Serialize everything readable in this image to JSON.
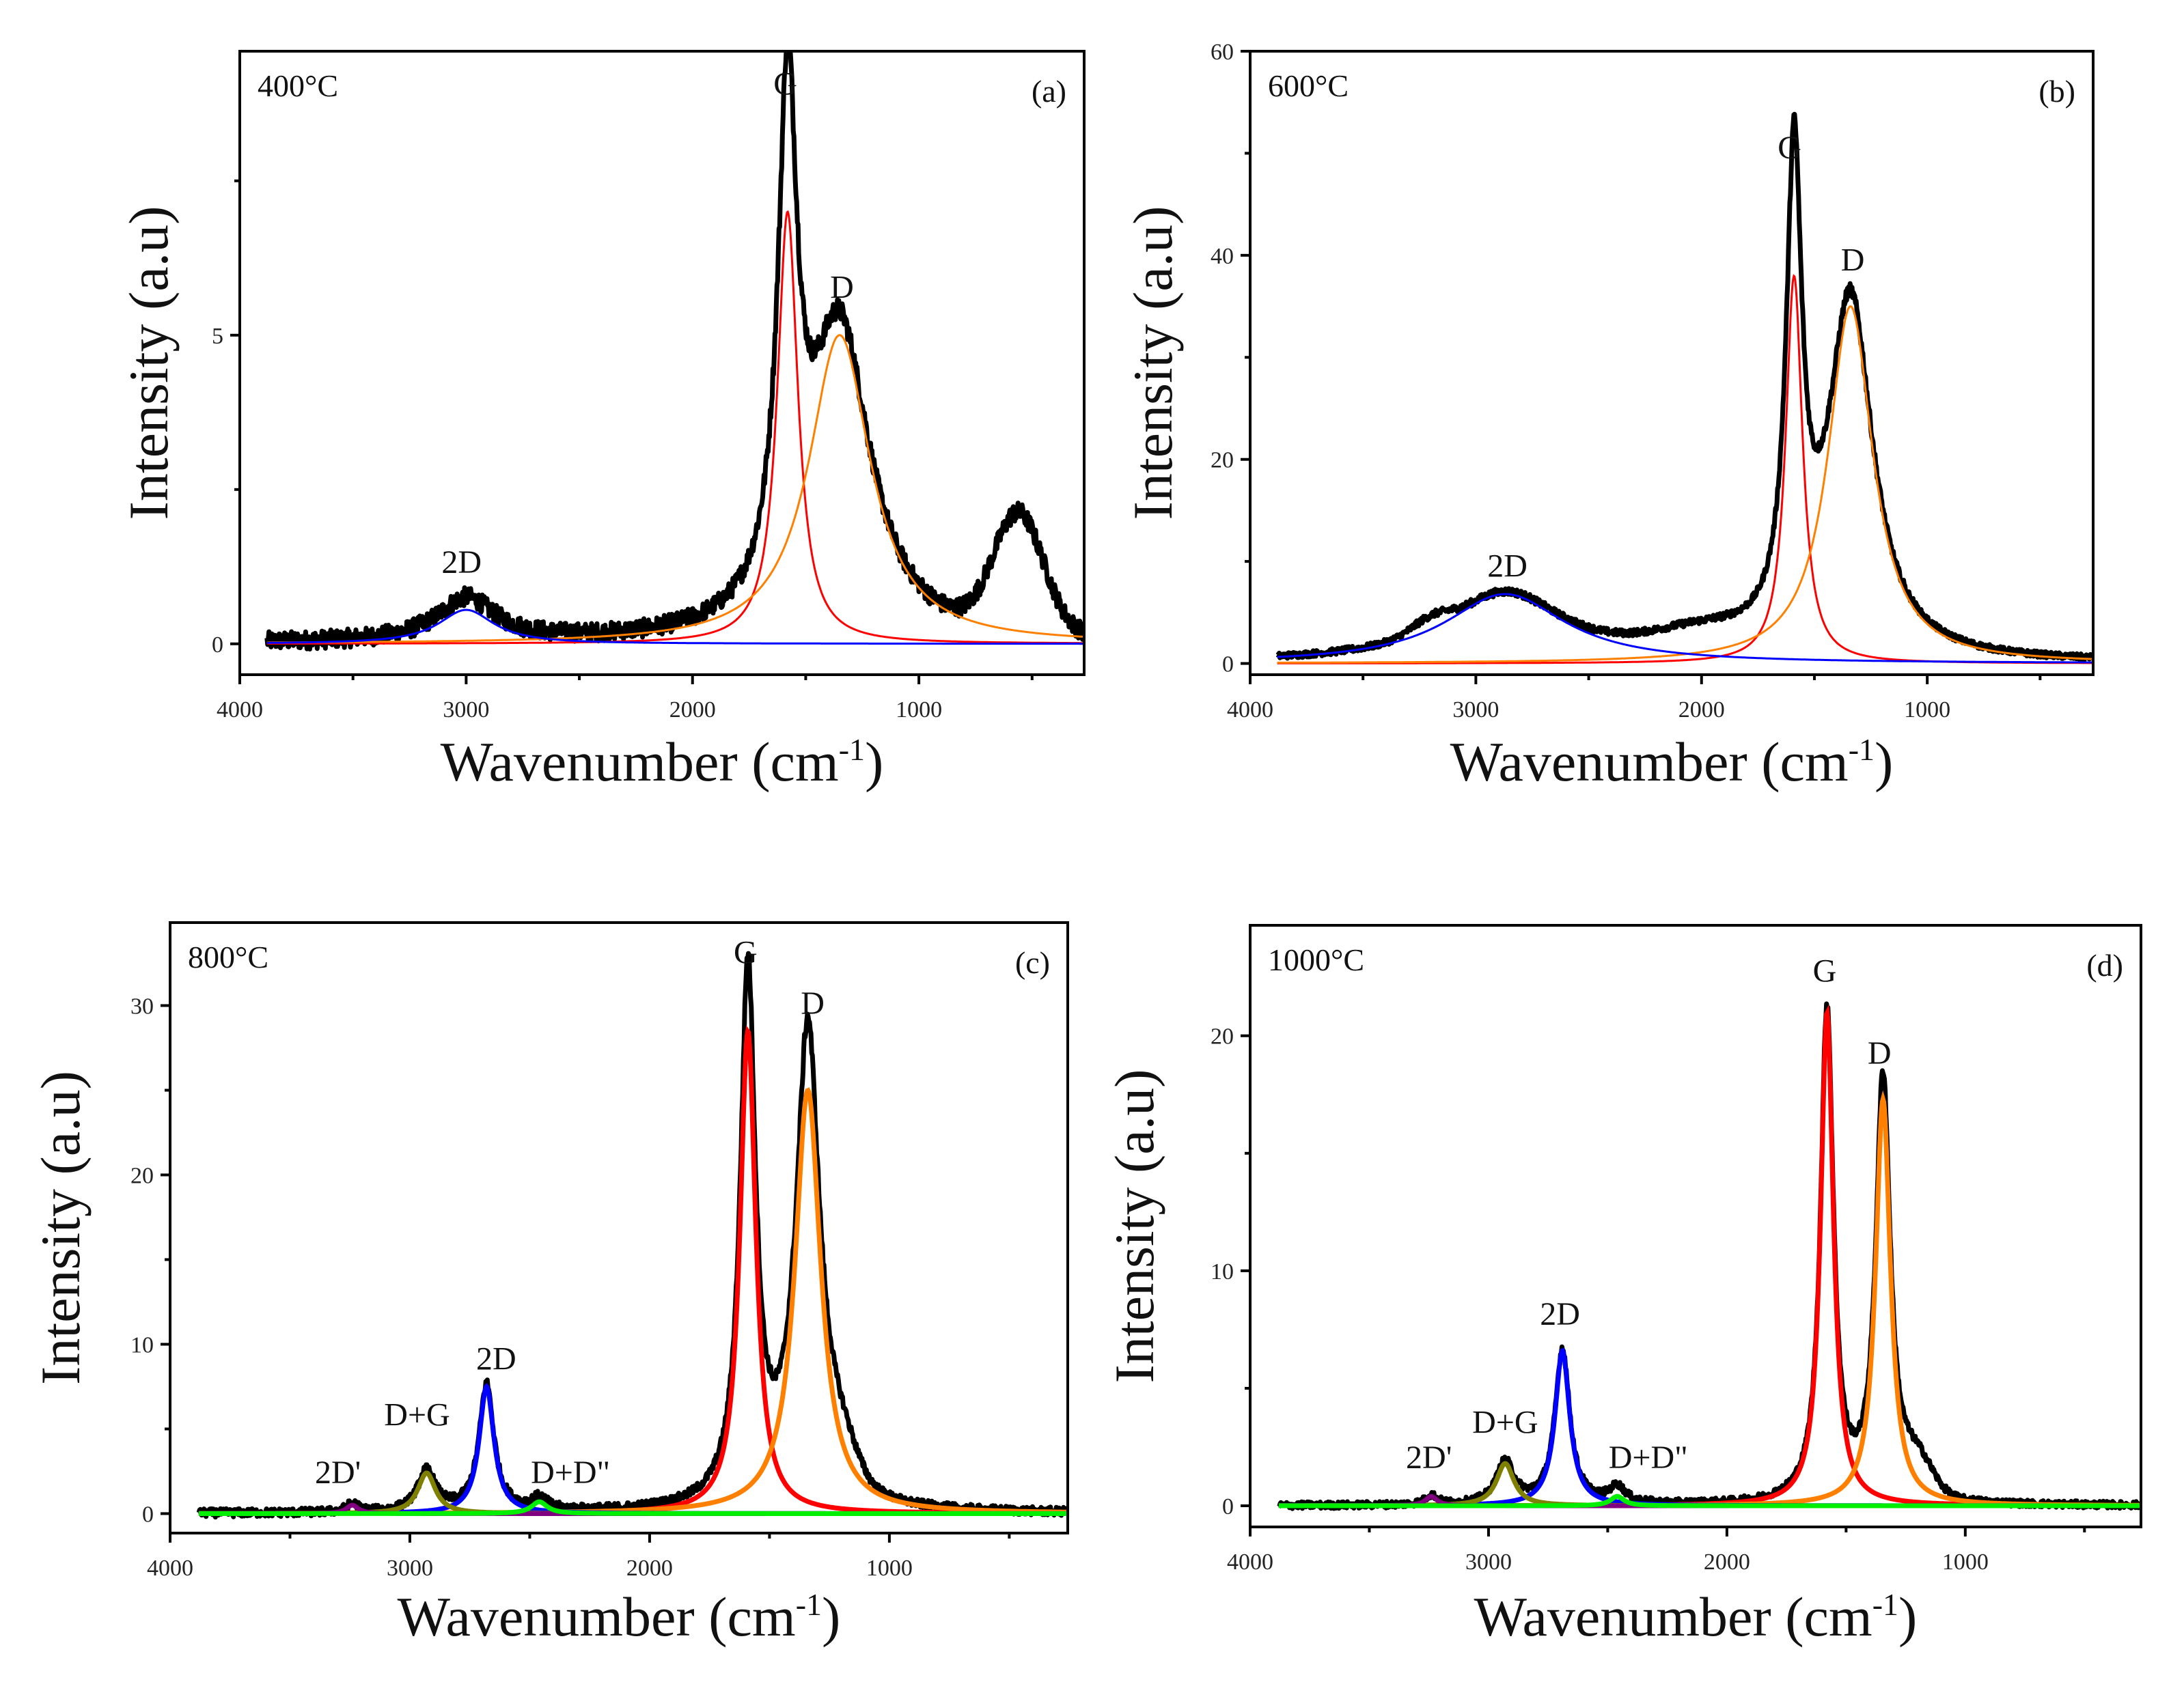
{
  "chart_data": [
    {
      "type": "line",
      "panel_label": "(a)",
      "temperature": "400°C",
      "xlabel": "Wavenumber (cm",
      "xlabel_sup": "-1",
      "xlabel_end": ")",
      "ylabel": "Intensity (a.u)",
      "xlim": [
        4000,
        270
      ],
      "ylim": [
        -0.5,
        9.6
      ],
      "xticks": [
        4000,
        3000,
        2000,
        1000
      ],
      "yticks": [
        0,
        5
      ],
      "yminor": [
        2.5,
        7.5
      ],
      "data_range": [
        3880,
        270
      ],
      "noise": 0.15,
      "fit_width": 3,
      "fits": [
        {
          "name": "G",
          "color": "#ff0000",
          "center": 1580,
          "height": 7.0,
          "fwhm": 110
        },
        {
          "name": "D",
          "color": "#ff8000",
          "center": 1350,
          "height": 5.0,
          "fwhm": 330
        },
        {
          "name": "2D",
          "color": "#0000ff",
          "center": 3000,
          "height": 0.55,
          "fwhm": 300
        }
      ],
      "extra_features": [
        {
          "center": 1580,
          "height": 1.2,
          "fwhm": 60
        },
        {
          "center": 560,
          "height": 1.9,
          "fwhm": 260,
          "shape": "gaussian"
        },
        {
          "center": 3000,
          "height": 0.15,
          "fwhm": 350
        }
      ],
      "annotations": [
        {
          "text": "G",
          "x": 1590,
          "y": 8.9
        },
        {
          "text": "D",
          "x": 1340,
          "y": 5.6
        },
        {
          "text": "2D",
          "x": 3020,
          "y": 1.15
        }
      ]
    },
    {
      "type": "line",
      "panel_label": "(b)",
      "temperature": "600°C",
      "xlabel": "Wavenumber (cm",
      "xlabel_sup": "-1",
      "xlabel_end": ")",
      "ylabel": "Intensity (a.u)",
      "xlim": [
        4000,
        265
      ],
      "ylim": [
        -1.1,
        60
      ],
      "xticks": [
        4000,
        3000,
        2000,
        1000
      ],
      "yticks": [
        0,
        20,
        40,
        60
      ],
      "yminor": [
        10,
        30,
        50
      ],
      "data_range": [
        3880,
        270
      ],
      "noise": 0.3,
      "fit_width": 3,
      "fits": [
        {
          "name": "G",
          "color": "#ff0000",
          "center": 1590,
          "height": 38,
          "fwhm": 90
        },
        {
          "name": "D",
          "color": "#ff8000",
          "center": 1340,
          "height": 35,
          "fwhm": 240
        },
        {
          "name": "2D",
          "color": "#0000ff",
          "center": 2870,
          "height": 6.8,
          "fwhm": 650
        }
      ],
      "extra_features": [
        {
          "center": 1590,
          "height": 8,
          "fwhm": 60
        },
        {
          "center": 3200,
          "height": 1.2,
          "fwhm": 200,
          "shape": "gaussian"
        },
        {
          "center": 2000,
          "height": 1.8,
          "fwhm": 500,
          "shape": "gaussian"
        }
      ],
      "annotations": [
        {
          "text": "G",
          "x": 1610,
          "y": 49.5
        },
        {
          "text": "D",
          "x": 1330,
          "y": 38.5
        },
        {
          "text": "2D",
          "x": 2860,
          "y": 8.5
        }
      ]
    },
    {
      "type": "line",
      "panel_label": "(c)",
      "temperature": "800°C",
      "xlabel": "Wavenumber (cm",
      "xlabel_sup": "-1",
      "xlabel_end": ")",
      "ylabel": "Intensity (a.u)",
      "xlim": [
        4000,
        256
      ],
      "ylim": [
        -1.15,
        34.9
      ],
      "xticks": [
        4000,
        3000,
        2000,
        1000
      ],
      "yticks": [
        0,
        10,
        20,
        30
      ],
      "yminor": [
        5,
        15,
        25
      ],
      "data_range": [
        3880,
        256
      ],
      "noise": 0.25,
      "fit_width": 7,
      "fits": [
        {
          "name": "G",
          "color": "#ff0000",
          "center": 1590,
          "height": 28.5,
          "fwhm": 80
        },
        {
          "name": "D",
          "color": "#ff8000",
          "center": 1340,
          "height": 25,
          "fwhm": 130
        },
        {
          "name": "2D",
          "color": "#0000ff",
          "center": 2680,
          "height": 7.5,
          "fwhm": 75
        },
        {
          "name": "D+G",
          "color": "#808000",
          "center": 2930,
          "height": 2.4,
          "fwhm": 90
        },
        {
          "name": "2D'",
          "color": "#800080",
          "center": 3240,
          "height": 0.5,
          "fwhm": 60
        },
        {
          "name": "D+D\"",
          "color": "#00ee00",
          "center": 2460,
          "height": 0.7,
          "fwhm": 80
        }
      ],
      "extra_features": [
        {
          "center": 1590,
          "height": 3,
          "fwhm": 50
        },
        {
          "center": 1340,
          "height": 3.5,
          "fwhm": 70
        },
        {
          "center": 1200,
          "height": 2,
          "fwhm": 150,
          "shape": "gaussian"
        }
      ],
      "annotations": [
        {
          "text": "G",
          "x": 1600,
          "y": 32.5
        },
        {
          "text": "D",
          "x": 1320,
          "y": 29.5
        },
        {
          "text": "2D",
          "x": 2640,
          "y": 8.5
        },
        {
          "text": "D+G",
          "x": 2970,
          "y": 5.2
        },
        {
          "text": "2D'",
          "x": 3300,
          "y": 1.8
        },
        {
          "text": "D+D\"",
          "x": 2330,
          "y": 1.8
        }
      ]
    },
    {
      "type": "line",
      "panel_label": "(d)",
      "temperature": "1000°C",
      "xlabel": "Wavenumber (cm",
      "xlabel_sup": "-1",
      "xlabel_end": ")",
      "ylabel": "Intensity (a.u)",
      "xlim": [
        4000,
        263
      ],
      "ylim": [
        -0.9,
        24.7
      ],
      "xticks": [
        4000,
        3000,
        2000,
        1000
      ],
      "yticks": [
        0,
        10,
        20
      ],
      "yminor": [
        5,
        15
      ],
      "data_range": [
        3880,
        263
      ],
      "noise": 0.15,
      "fit_width": 7,
      "fits": [
        {
          "name": "G",
          "color": "#ff0000",
          "center": 1580,
          "height": 21,
          "fwhm": 65
        },
        {
          "name": "D",
          "color": "#ff8000",
          "center": 1345,
          "height": 17.3,
          "fwhm": 75
        },
        {
          "name": "2D",
          "color": "#0000ff",
          "center": 2690,
          "height": 6.6,
          "fwhm": 75
        },
        {
          "name": "D+G",
          "color": "#808000",
          "center": 2930,
          "height": 1.8,
          "fwhm": 90
        },
        {
          "name": "2D'",
          "color": "#800080",
          "center": 3240,
          "height": 0.4,
          "fwhm": 60
        },
        {
          "name": "D+D\"",
          "color": "#00ee00",
          "center": 2460,
          "height": 0.4,
          "fwhm": 70
        }
      ],
      "extra_features": [
        {
          "center": 1345,
          "height": 0.8,
          "fwhm": 60
        },
        {
          "center": 1200,
          "height": 1.4,
          "fwhm": 150,
          "shape": "gaussian"
        },
        {
          "center": 2460,
          "height": 0.3,
          "fwhm": 100
        }
      ],
      "annotations": [
        {
          "text": "G",
          "x": 1590,
          "y": 22.3
        },
        {
          "text": "D",
          "x": 1360,
          "y": 18.8
        },
        {
          "text": "2D",
          "x": 2700,
          "y": 7.7
        },
        {
          "text": "D+G",
          "x": 2930,
          "y": 3.1
        },
        {
          "text": "2D'",
          "x": 3250,
          "y": 1.6
        },
        {
          "text": "D+D\"",
          "x": 2330,
          "y": 1.6
        }
      ]
    }
  ]
}
